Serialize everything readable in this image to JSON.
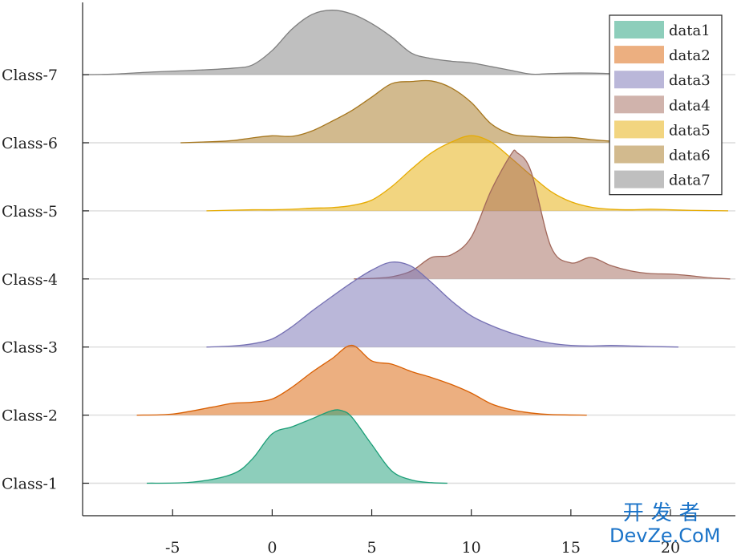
{
  "chart_data": {
    "type": "area",
    "title": "",
    "xlabel": "",
    "ylabel": "",
    "xlim": [
      -9.5,
      23
    ],
    "xticks": [
      -5,
      0,
      5,
      10,
      15,
      20
    ],
    "xtick_labels": [
      "-5",
      "0",
      "5",
      "10",
      "15",
      "20"
    ],
    "categories": [
      "Class-1",
      "Class-2",
      "Class-3",
      "Class-4",
      "Class-5",
      "Class-6",
      "Class-7"
    ],
    "grid": "horizontal baselines",
    "legend_position": "top-right",
    "ridge_scale_note": "density heights relative to class spacing",
    "series": [
      {
        "name": "data1",
        "category": "Class-1",
        "color": "#1b9e77",
        "x": [
          -6.3,
          -4,
          -2,
          -1,
          0,
          1,
          2,
          3,
          3.5,
          4,
          5,
          6,
          7,
          8,
          8.8
        ],
        "y": [
          0,
          0.02,
          0.17,
          0.45,
          0.92,
          1.05,
          1.2,
          1.35,
          1.35,
          1.23,
          0.72,
          0.23,
          0.06,
          0.01,
          0
        ]
      },
      {
        "name": "data2",
        "category": "Class-2",
        "color": "#d95f02",
        "x": [
          -6.8,
          -5,
          -3,
          -2,
          -1,
          0,
          1,
          2,
          3,
          4,
          5,
          6,
          7,
          8,
          9,
          10,
          11,
          12,
          13,
          14,
          15.8
        ],
        "y": [
          0,
          0.02,
          0.15,
          0.22,
          0.24,
          0.3,
          0.52,
          0.8,
          1.05,
          1.3,
          1.01,
          0.95,
          0.81,
          0.7,
          0.57,
          0.41,
          0.21,
          0.1,
          0.04,
          0.01,
          0
        ]
      },
      {
        "name": "data3",
        "category": "Class-3",
        "color": "#7570b3",
        "x": [
          -3.3,
          -2,
          -1,
          0,
          1,
          2,
          3,
          4,
          5,
          6,
          7,
          8,
          9,
          10,
          11,
          12,
          13,
          14,
          15,
          16,
          17,
          18,
          19,
          20.4
        ],
        "y": [
          0,
          0.02,
          0.06,
          0.15,
          0.38,
          0.67,
          0.94,
          1.2,
          1.43,
          1.58,
          1.5,
          1.2,
          0.86,
          0.58,
          0.4,
          0.26,
          0.15,
          0.07,
          0.03,
          0.02,
          0.03,
          0.02,
          0.01,
          0
        ]
      },
      {
        "name": "data4",
        "category": "Class-4",
        "color": "#a1675a",
        "x": [
          4.1,
          5,
          6,
          7,
          8,
          9,
          10,
          11,
          12,
          12.3,
          13,
          14,
          15,
          16,
          17,
          18,
          19,
          20,
          21,
          22,
          23
        ],
        "y": [
          0,
          0.01,
          0.04,
          0.15,
          0.4,
          0.45,
          0.78,
          1.65,
          2.32,
          2.35,
          2.0,
          0.6,
          0.3,
          0.4,
          0.25,
          0.15,
          0.1,
          0.09,
          0.06,
          0.02,
          0
        ]
      },
      {
        "name": "data5",
        "category": "Class-5",
        "color": "#e6ab02",
        "x": [
          -3.3,
          -1,
          0,
          1,
          2,
          3,
          4,
          5,
          6,
          7,
          8,
          9,
          10,
          11,
          12,
          13,
          14,
          15,
          16,
          17,
          18,
          19,
          20,
          21,
          22.9
        ],
        "y": [
          0,
          0.02,
          0.02,
          0.03,
          0.05,
          0.06,
          0.1,
          0.2,
          0.45,
          0.78,
          1.08,
          1.28,
          1.4,
          1.28,
          0.98,
          0.66,
          0.36,
          0.17,
          0.07,
          0.03,
          0.02,
          0.03,
          0.02,
          0.01,
          0
        ]
      },
      {
        "name": "data6",
        "category": "Class-6",
        "color": "#a6761d",
        "x": [
          -4.6,
          -3,
          -2,
          -1,
          0,
          1,
          2,
          3,
          4,
          5,
          6,
          7,
          8,
          9,
          10,
          11,
          12,
          13,
          14,
          15,
          16,
          17,
          18,
          18.5
        ],
        "y": [
          0,
          0.02,
          0.04,
          0.09,
          0.13,
          0.12,
          0.22,
          0.4,
          0.6,
          0.85,
          1.1,
          1.14,
          1.15,
          1.02,
          0.75,
          0.35,
          0.16,
          0.12,
          0.1,
          0.1,
          0.06,
          0.03,
          0.01,
          0
        ]
      },
      {
        "name": "data7",
        "category": "Class-7",
        "color": "#7f7f7f",
        "x": [
          -9.5,
          -8,
          -6,
          -4,
          -2,
          -1,
          0,
          1,
          2,
          3,
          4,
          5,
          6,
          7,
          8,
          9,
          10,
          11,
          12,
          13,
          14,
          15,
          16,
          17,
          18,
          19.5
        ],
        "y": [
          0,
          0.01,
          0.05,
          0.08,
          0.12,
          0.18,
          0.45,
          0.85,
          1.12,
          1.2,
          1.13,
          0.95,
          0.7,
          0.4,
          0.3,
          0.25,
          0.22,
          0.15,
          0.08,
          0.01,
          0.02,
          0.03,
          0.03,
          0.02,
          0.01,
          0
        ]
      }
    ]
  },
  "watermark": {
    "line1": "开发者",
    "line2": "DevZe.CoM"
  }
}
